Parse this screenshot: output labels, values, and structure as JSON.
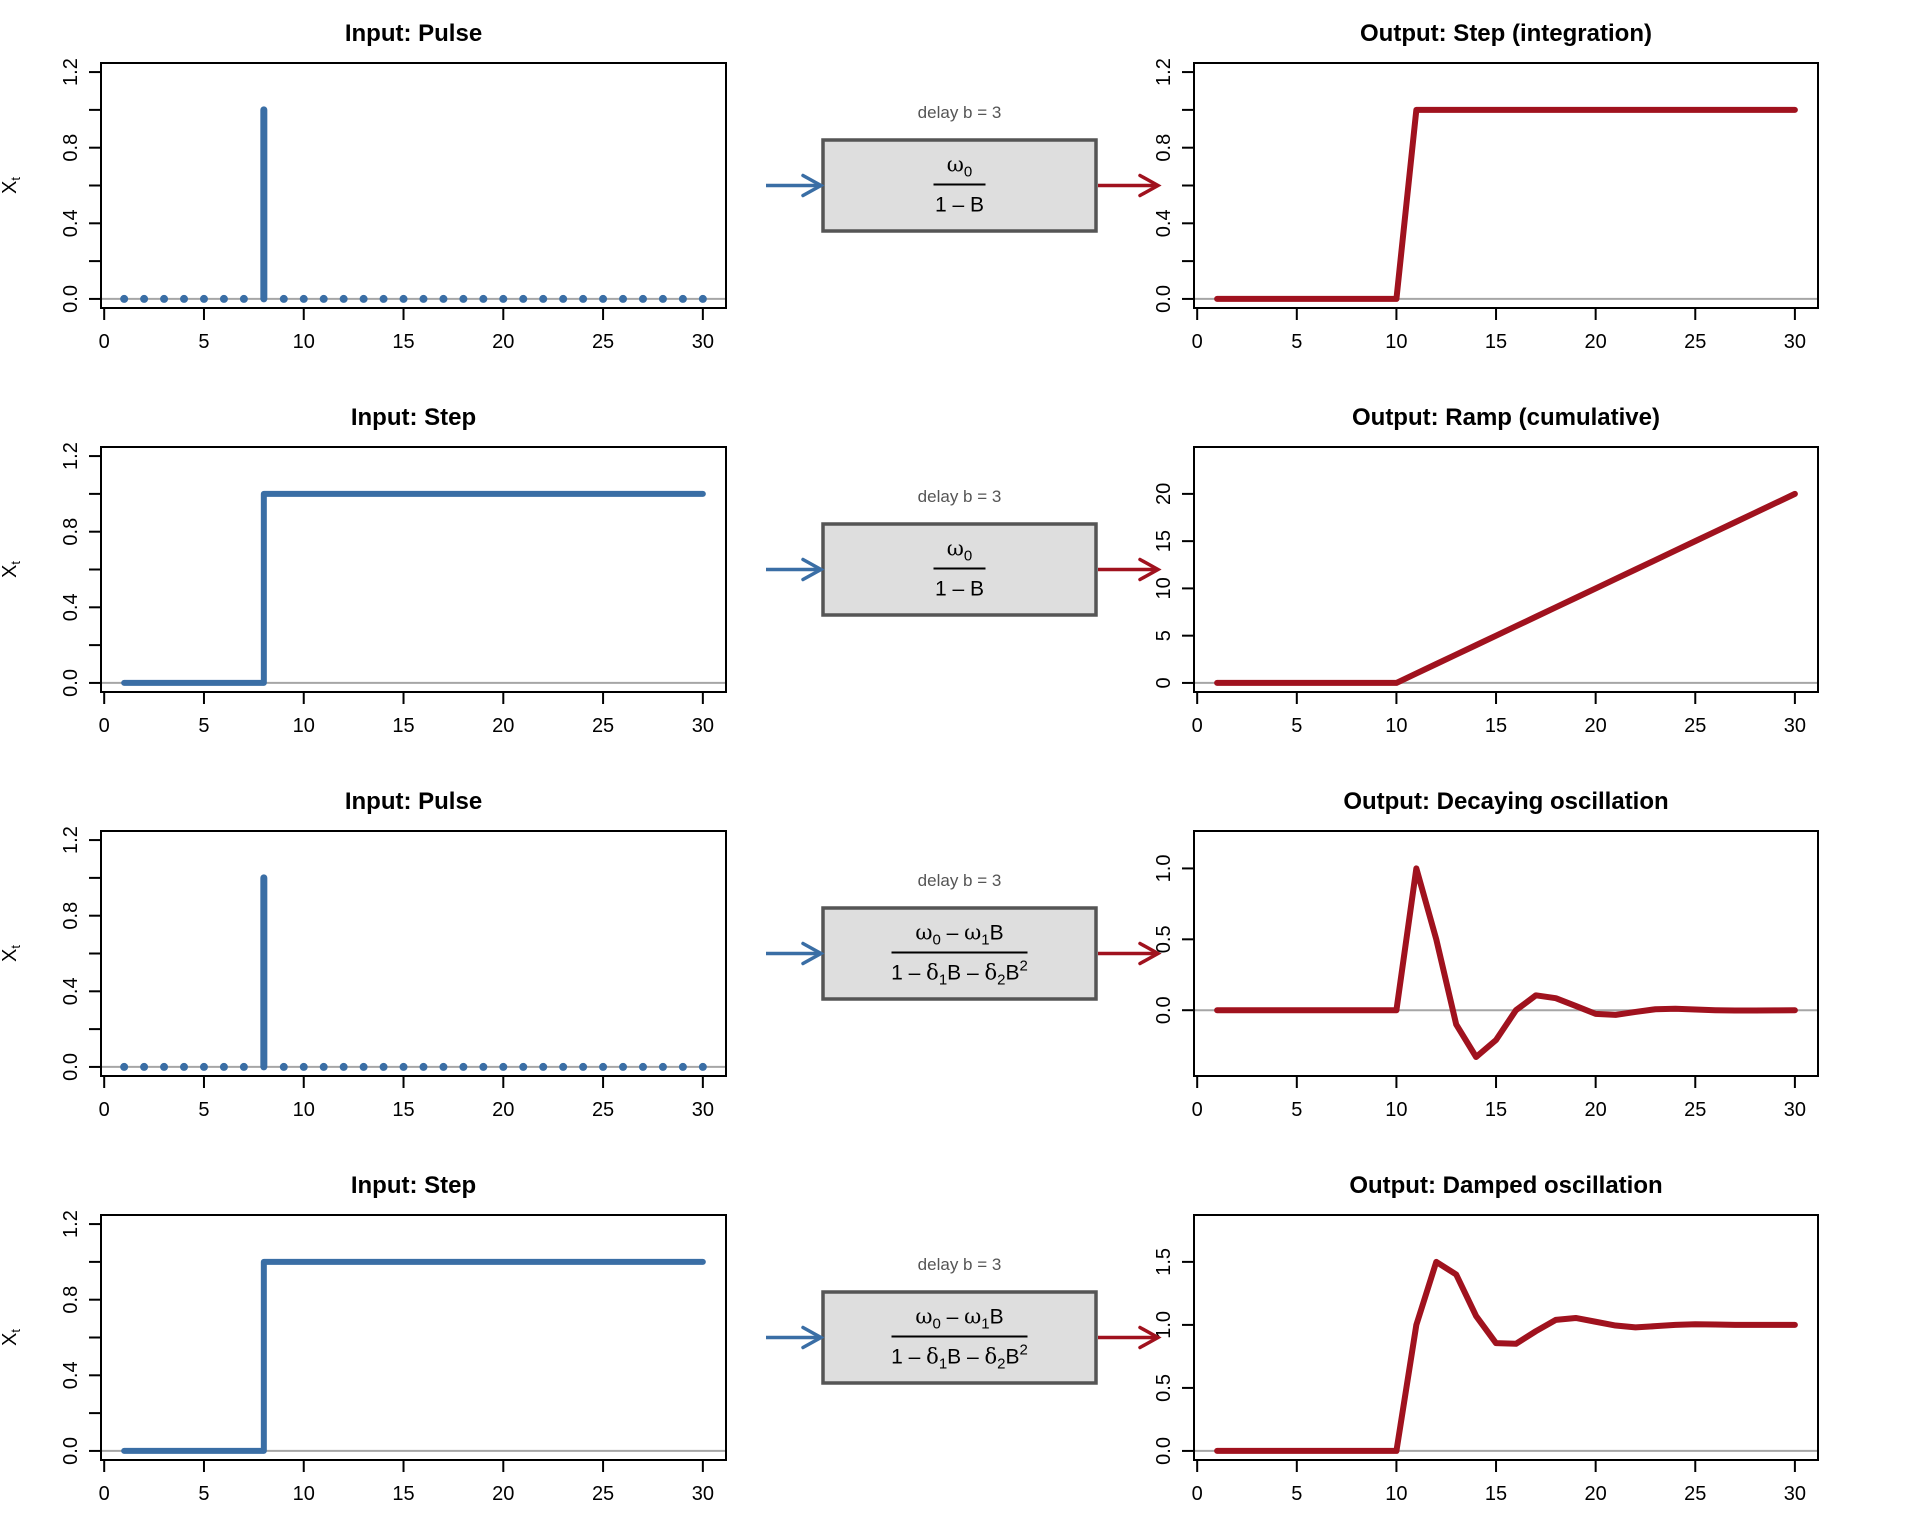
{
  "figure": {
    "colors": {
      "input": "#3A6EA5",
      "output": "#A0121E",
      "zero_line": "#A6A6A6",
      "box_fill": "#DEDEDE",
      "box_border": "#555555",
      "delay_text": "#555555"
    }
  },
  "chart_data": [
    {
      "id": "row1-input",
      "type": "line",
      "style": "pulse-stem",
      "title": "Input: Pulse",
      "xlabel": "",
      "ylabel": "X_t",
      "ylabel_main": "X",
      "ylabel_sub": "t",
      "xlim": [
        1,
        30
      ],
      "ylim": [
        0,
        1.2
      ],
      "xticks": [
        0,
        5,
        10,
        15,
        20,
        25,
        30
      ],
      "yticks": [
        0,
        0.2,
        0.4,
        0.6,
        0.8,
        1.0,
        1.2
      ],
      "ytick_labels": [
        "0.0",
        "",
        "0.4",
        "",
        "0.8",
        "",
        "1.2"
      ],
      "x": [
        1,
        2,
        3,
        4,
        5,
        6,
        7,
        8,
        9,
        10,
        11,
        12,
        13,
        14,
        15,
        16,
        17,
        18,
        19,
        20,
        21,
        22,
        23,
        24,
        25,
        26,
        27,
        28,
        29,
        30
      ],
      "values": [
        0,
        0,
        0,
        0,
        0,
        0,
        0,
        1,
        0,
        0,
        0,
        0,
        0,
        0,
        0,
        0,
        0,
        0,
        0,
        0,
        0,
        0,
        0,
        0,
        0,
        0,
        0,
        0,
        0,
        0
      ],
      "series_color": "input",
      "grid": false
    },
    {
      "id": "row1-output",
      "type": "line",
      "style": "line",
      "title": "Output: Step (integration)",
      "xlabel": "",
      "ylabel": "",
      "xlim": [
        1,
        30
      ],
      "ylim": [
        0,
        1.2
      ],
      "xticks": [
        0,
        5,
        10,
        15,
        20,
        25,
        30
      ],
      "yticks": [
        0,
        0.2,
        0.4,
        0.6,
        0.8,
        1.0,
        1.2
      ],
      "ytick_labels": [
        "0.0",
        "",
        "0.4",
        "",
        "0.8",
        "",
        "1.2"
      ],
      "x": [
        1,
        2,
        3,
        4,
        5,
        6,
        7,
        8,
        9,
        10,
        11,
        12,
        13,
        14,
        15,
        16,
        17,
        18,
        19,
        20,
        21,
        22,
        23,
        24,
        25,
        26,
        27,
        28,
        29,
        30
      ],
      "values": [
        0,
        0,
        0,
        0,
        0,
        0,
        0,
        0,
        0,
        0,
        1,
        1,
        1,
        1,
        1,
        1,
        1,
        1,
        1,
        1,
        1,
        1,
        1,
        1,
        1,
        1,
        1,
        1,
        1,
        1
      ],
      "series_color": "output",
      "grid": false
    },
    {
      "id": "row2-input",
      "type": "line",
      "style": "step",
      "title": "Input: Step",
      "xlabel": "",
      "ylabel": "X_t",
      "ylabel_main": "X",
      "ylabel_sub": "t",
      "xlim": [
        1,
        30
      ],
      "ylim": [
        0,
        1.2
      ],
      "xticks": [
        0,
        5,
        10,
        15,
        20,
        25,
        30
      ],
      "yticks": [
        0,
        0.2,
        0.4,
        0.6,
        0.8,
        1.0,
        1.2
      ],
      "ytick_labels": [
        "0.0",
        "",
        "0.4",
        "",
        "0.8",
        "",
        "1.2"
      ],
      "x": [
        1,
        2,
        3,
        4,
        5,
        6,
        7,
        8,
        9,
        10,
        11,
        12,
        13,
        14,
        15,
        16,
        17,
        18,
        19,
        20,
        21,
        22,
        23,
        24,
        25,
        26,
        27,
        28,
        29,
        30
      ],
      "values": [
        0,
        0,
        0,
        0,
        0,
        0,
        0,
        1,
        1,
        1,
        1,
        1,
        1,
        1,
        1,
        1,
        1,
        1,
        1,
        1,
        1,
        1,
        1,
        1,
        1,
        1,
        1,
        1,
        1,
        1
      ],
      "series_color": "input",
      "grid": false
    },
    {
      "id": "row2-output",
      "type": "line",
      "style": "line",
      "title": "Output: Ramp (cumulative)",
      "xlabel": "",
      "ylabel": "",
      "xlim": [
        1,
        30
      ],
      "ylim": [
        0,
        24
      ],
      "xticks": [
        0,
        5,
        10,
        15,
        20,
        25,
        30
      ],
      "yticks": [
        0,
        5,
        10,
        15,
        20
      ],
      "ytick_labels": [
        "0",
        "5",
        "10",
        "15",
        "20"
      ],
      "x": [
        1,
        2,
        3,
        4,
        5,
        6,
        7,
        8,
        9,
        10,
        11,
        12,
        13,
        14,
        15,
        16,
        17,
        18,
        19,
        20,
        21,
        22,
        23,
        24,
        25,
        26,
        27,
        28,
        29,
        30
      ],
      "values": [
        0,
        0,
        0,
        0,
        0,
        0,
        0,
        0,
        0,
        0,
        1,
        2,
        3,
        4,
        5,
        6,
        7,
        8,
        9,
        10,
        11,
        12,
        13,
        14,
        15,
        16,
        17,
        18,
        19,
        20
      ],
      "series_color": "output",
      "grid": false
    },
    {
      "id": "row3-input",
      "type": "line",
      "style": "pulse-stem",
      "title": "Input: Pulse",
      "xlabel": "",
      "ylabel": "X_t",
      "ylabel_main": "X",
      "ylabel_sub": "t",
      "xlim": [
        1,
        30
      ],
      "ylim": [
        0,
        1.2
      ],
      "xticks": [
        0,
        5,
        10,
        15,
        20,
        25,
        30
      ],
      "yticks": [
        0,
        0.2,
        0.4,
        0.6,
        0.8,
        1.0,
        1.2
      ],
      "ytick_labels": [
        "0.0",
        "",
        "0.4",
        "",
        "0.8",
        "",
        "1.2"
      ],
      "x": [
        1,
        2,
        3,
        4,
        5,
        6,
        7,
        8,
        9,
        10,
        11,
        12,
        13,
        14,
        15,
        16,
        17,
        18,
        19,
        20,
        21,
        22,
        23,
        24,
        25,
        26,
        27,
        28,
        29,
        30
      ],
      "values": [
        0,
        0,
        0,
        0,
        0,
        0,
        0,
        1,
        0,
        0,
        0,
        0,
        0,
        0,
        0,
        0,
        0,
        0,
        0,
        0,
        0,
        0,
        0,
        0,
        0,
        0,
        0,
        0,
        0,
        0
      ],
      "series_color": "input",
      "grid": false
    },
    {
      "id": "row3-output",
      "type": "line",
      "style": "line",
      "title": "Output: Decaying oscillation",
      "xlabel": "",
      "ylabel": "",
      "xlim": [
        1,
        30
      ],
      "ylim": [
        -0.4,
        1.2
      ],
      "xticks": [
        0,
        5,
        10,
        15,
        20,
        25,
        30
      ],
      "yticks": [
        0,
        0.5,
        1.0
      ],
      "ytick_labels": [
        "0.0",
        "0.5",
        "1.0"
      ],
      "x": [
        1,
        2,
        3,
        4,
        5,
        6,
        7,
        8,
        9,
        10,
        11,
        12,
        13,
        14,
        15,
        16,
        17,
        18,
        19,
        20,
        21,
        22,
        23,
        24,
        25,
        26,
        27,
        28,
        29,
        30
      ],
      "values": [
        0,
        0,
        0,
        0,
        0,
        0,
        0,
        0,
        0,
        0,
        1.0,
        0.5,
        -0.1,
        -0.33,
        -0.21,
        0.0,
        0.105,
        0.085,
        0.03,
        -0.026,
        -0.033,
        -0.012,
        0.007,
        0.01,
        0.005,
        0.0,
        -0.002,
        -0.002,
        -0.001,
        0.0
      ],
      "series_color": "output",
      "grid": false
    },
    {
      "id": "row4-input",
      "type": "line",
      "style": "step",
      "title": "Input: Step",
      "xlabel": "",
      "ylabel": "X_t",
      "ylabel_main": "X",
      "ylabel_sub": "t",
      "xlim": [
        1,
        30
      ],
      "ylim": [
        0,
        1.2
      ],
      "xticks": [
        0,
        5,
        10,
        15,
        20,
        25,
        30
      ],
      "yticks": [
        0,
        0.2,
        0.4,
        0.6,
        0.8,
        1.0,
        1.2
      ],
      "ytick_labels": [
        "0.0",
        "",
        "0.4",
        "",
        "0.8",
        "",
        "1.2"
      ],
      "x": [
        1,
        2,
        3,
        4,
        5,
        6,
        7,
        8,
        9,
        10,
        11,
        12,
        13,
        14,
        15,
        16,
        17,
        18,
        19,
        20,
        21,
        22,
        23,
        24,
        25,
        26,
        27,
        28,
        29,
        30
      ],
      "values": [
        0,
        0,
        0,
        0,
        0,
        0,
        0,
        1,
        1,
        1,
        1,
        1,
        1,
        1,
        1,
        1,
        1,
        1,
        1,
        1,
        1,
        1,
        1,
        1,
        1,
        1,
        1,
        1,
        1,
        1
      ],
      "series_color": "input",
      "grid": false
    },
    {
      "id": "row4-output",
      "type": "line",
      "style": "line",
      "title": "Output: Damped oscillation",
      "xlabel": "",
      "ylabel": "",
      "xlim": [
        1,
        30
      ],
      "ylim": [
        0,
        1.8
      ],
      "xticks": [
        0,
        5,
        10,
        15,
        20,
        25,
        30
      ],
      "yticks": [
        0,
        0.5,
        1.0,
        1.5
      ],
      "ytick_labels": [
        "0.0",
        "0.5",
        "1.0",
        "1.5"
      ],
      "x": [
        1,
        2,
        3,
        4,
        5,
        6,
        7,
        8,
        9,
        10,
        11,
        12,
        13,
        14,
        15,
        16,
        17,
        18,
        19,
        20,
        21,
        22,
        23,
        24,
        25,
        26,
        27,
        28,
        29,
        30
      ],
      "values": [
        0,
        0,
        0,
        0,
        0,
        0,
        0,
        0,
        0,
        0,
        1.0,
        1.5,
        1.4,
        1.07,
        0.855,
        0.85,
        0.95,
        1.04,
        1.055,
        1.025,
        0.995,
        0.98,
        0.99,
        1.0,
        1.005,
        1.003,
        1.0,
        1.0,
        1.0,
        1.0
      ],
      "series_color": "output",
      "grid": false
    }
  ],
  "transfer_boxes": [
    {
      "delay_label": "delay b = 3",
      "numerator": [
        {
          "t": "ω",
          "greek": true
        },
        {
          "t": "0",
          "sub": true
        }
      ],
      "denominator": [
        {
          "t": "1 – B"
        }
      ]
    },
    {
      "delay_label": "delay b = 3",
      "numerator": [
        {
          "t": "ω",
          "greek": true
        },
        {
          "t": "0",
          "sub": true
        }
      ],
      "denominator": [
        {
          "t": "1 – B"
        }
      ]
    },
    {
      "delay_label": "delay b = 3",
      "numerator": [
        {
          "t": "ω",
          "greek": true
        },
        {
          "t": "0",
          "sub": true
        },
        {
          "t": " – "
        },
        {
          "t": "ω",
          "greek": true
        },
        {
          "t": "1",
          "sub": true
        },
        {
          "t": "B"
        }
      ],
      "denominator": [
        {
          "t": "1 – "
        },
        {
          "t": "δ",
          "greek": true
        },
        {
          "t": "1",
          "sub": true
        },
        {
          "t": "B – "
        },
        {
          "t": "δ",
          "greek": true
        },
        {
          "t": "2",
          "sub": true
        },
        {
          "t": "B"
        },
        {
          "t": "2",
          "sup": true
        }
      ]
    },
    {
      "delay_label": "delay b = 3",
      "numerator": [
        {
          "t": "ω",
          "greek": true
        },
        {
          "t": "0",
          "sub": true
        },
        {
          "t": " – "
        },
        {
          "t": "ω",
          "greek": true
        },
        {
          "t": "1",
          "sub": true
        },
        {
          "t": "B"
        }
      ],
      "denominator": [
        {
          "t": "1 – "
        },
        {
          "t": "δ",
          "greek": true
        },
        {
          "t": "1",
          "sub": true
        },
        {
          "t": "B – "
        },
        {
          "t": "δ",
          "greek": true
        },
        {
          "t": "2",
          "sub": true
        },
        {
          "t": "B"
        },
        {
          "t": "2",
          "sup": true
        }
      ]
    }
  ]
}
